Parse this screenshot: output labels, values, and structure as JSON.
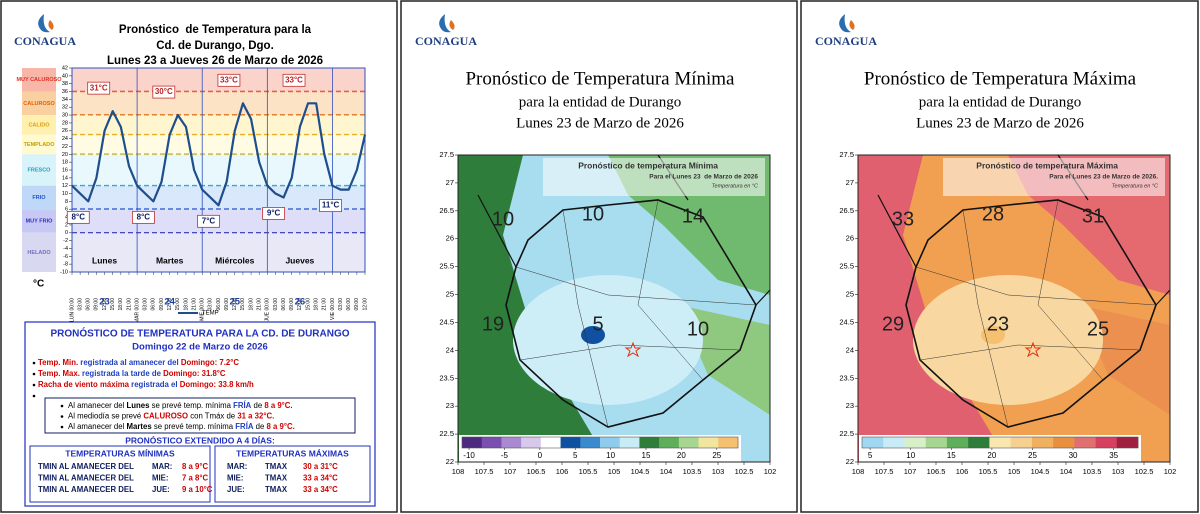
{
  "header": {
    "logo": "CONAGUA",
    "title": [
      "Pronóstico  de Temperatura para la",
      "Cd. de Durango, Dgo.",
      "Lunes 23 a Jueves 26 de Marzo de 2026"
    ],
    "unit": "°C"
  },
  "chart_data": {
    "type": "line",
    "categories": [
      "LUN 00:00",
      "03:00",
      "06:00",
      "09:00",
      "12:00",
      "15:00",
      "18:00",
      "21:00",
      "MAR 00:00",
      "03:00",
      "06:00",
      "09:00",
      "12:00",
      "15:00",
      "18:00",
      "21:00",
      "MIE 00:00",
      "03:00",
      "06:00",
      "09:00",
      "12:00",
      "15:00",
      "18:00",
      "21:00",
      "JUE 00:00",
      "03:00",
      "06:00",
      "09:00",
      "12:00",
      "15:00",
      "18:00",
      "21:00",
      "VIE 00:00",
      "03:00",
      "06:00",
      "09:00",
      "12:00"
    ],
    "series": [
      {
        "name": "TEMP",
        "color": "#1f4e8c",
        "values": [
          12,
          10,
          8,
          14,
          26,
          31,
          27,
          17,
          12,
          10,
          8,
          13,
          25,
          30,
          27,
          16,
          11,
          9,
          7,
          13,
          26,
          33,
          29,
          18,
          12,
          10,
          9,
          14,
          27,
          33,
          33,
          20,
          12,
          11,
          11,
          16,
          25
        ]
      }
    ],
    "ylim": [
      -10,
      42
    ],
    "yticks": [
      -10,
      -8,
      -6,
      -4,
      -2,
      0,
      2,
      4,
      6,
      8,
      10,
      12,
      14,
      16,
      18,
      20,
      22,
      24,
      26,
      28,
      30,
      32,
      34,
      36,
      38,
      40,
      42
    ],
    "bands": [
      {
        "label": "MUY CALUROSO",
        "from": 36,
        "to": 42,
        "color": "#f7b6a8",
        "text_color": "#e03020"
      },
      {
        "label": "CALUROSO",
        "from": 30,
        "to": 36,
        "color": "#fbd0a0",
        "text_color": "#e06000"
      },
      {
        "label": "CALIDO",
        "from": 25,
        "to": 30,
        "color": "#fff0b0",
        "text_color": "#e0a000"
      },
      {
        "label": "TEMPLADO",
        "from": 20,
        "to": 25,
        "color": "#fffad0",
        "text_color": "#c0a000"
      },
      {
        "label": "FRESCO",
        "from": 12,
        "to": 20,
        "color": "#d8f4fa",
        "text_color": "#20a0c0"
      },
      {
        "label": "FRIO",
        "from": 6,
        "to": 12,
        "color": "#c0d8f8",
        "text_color": "#2050d0"
      },
      {
        "label": "MUY FRIO",
        "from": 0,
        "to": 6,
        "color": "#c8c8f4",
        "text_color": "#3030c0"
      },
      {
        "label": "HELADO",
        "from": -10,
        "to": 0,
        "color": "#d8d8f0",
        "text_color": "#7070c0"
      }
    ],
    "annotations": [
      {
        "index": 5,
        "text": "31°C"
      },
      {
        "index": 13,
        "text": "30°C"
      },
      {
        "index": 21,
        "text": "33°C"
      },
      {
        "index": 29,
        "text": "33°C"
      },
      {
        "index": 2,
        "text": "8°C"
      },
      {
        "index": 10,
        "text": "8°C"
      },
      {
        "index": 18,
        "text": "7°C"
      },
      {
        "index": 26,
        "text": "9°C"
      },
      {
        "index": 33,
        "text": "11°C"
      }
    ],
    "days": [
      {
        "name": "Lunes",
        "number": "23"
      },
      {
        "name": "Martes",
        "number": "24"
      },
      {
        "name": "Miércoles",
        "number": "25"
      },
      {
        "name": "Jueves",
        "number": "26"
      }
    ]
  },
  "summary": {
    "title": "PRONÓSTICO DE TEMPERATURA PARA LA CD. DE DURANGO",
    "date": "Domingo 22 de Marzo de 2026",
    "observed": [
      [
        [
          "Temp. Min.",
          "#d00000"
        ],
        [
          " registrada al amanecer del ",
          "#1f3fbf"
        ],
        [
          "Domingo: 7.2°C",
          "#d00000"
        ]
      ],
      [
        [
          "Temp. Max.",
          "#d00000"
        ],
        [
          " registrada la tarde de ",
          "#1f3fbf"
        ],
        [
          "Domingo: 31.8°C",
          "#d00000"
        ]
      ],
      [
        [
          "Racha de viento máxima",
          "#d00000"
        ],
        [
          " registrada el ",
          "#1f3fbf"
        ],
        [
          "Domingo: 33.8 km/h",
          "#d00000"
        ]
      ]
    ],
    "forecast": [
      [
        [
          "Al amanecer del ",
          "#000000"
        ],
        [
          "Lunes",
          "#000000"
        ],
        [
          " se prevé temp. mínima ",
          "#000000"
        ],
        [
          "FRÍA",
          "#1f3fbf"
        ],
        [
          " de ",
          "#000000"
        ],
        [
          "8 a 9°C.",
          "#d00000"
        ]
      ],
      [
        [
          "Al mediodía se prevé ",
          "#000000"
        ],
        [
          "CALUROSO",
          "#d00000"
        ],
        [
          " con Tmáx de ",
          "#000000"
        ],
        [
          "31 a 32°C.",
          "#d00000"
        ]
      ],
      [
        [
          "Al amanecer del ",
          "#000000"
        ],
        [
          "Martes",
          "#000000"
        ],
        [
          " se prevé temp. mínima ",
          "#000000"
        ],
        [
          "FRÍA",
          "#1f3fbf"
        ],
        [
          " de ",
          "#000000"
        ],
        [
          "8 a 9°C.",
          "#d00000"
        ]
      ]
    ],
    "extended_title": "PRONÓSTICO EXTENDIDO A 4 DÍAS:",
    "min_table": {
      "title": "TEMPERATURAS MÍNIMAS",
      "rows": [
        [
          "TMIN AL AMANECER DEL",
          "MAR:",
          "8 a 9°C"
        ],
        [
          "TMIN AL AMANECER DEL",
          "MIE:",
          "7 a 8°C"
        ],
        [
          "TMIN AL AMANECER DEL",
          "JUE:",
          "9 a 10°C"
        ]
      ]
    },
    "max_table": {
      "title": "TEMPERATURAS MÁXIMAS",
      "rows": [
        [
          "MAR:",
          "TMAX",
          "30 a 31°C"
        ],
        [
          "MIE:",
          "TMAX",
          "33 a 34°C"
        ],
        [
          "JUE:",
          "TMAX",
          "33 a 34°C"
        ]
      ]
    }
  },
  "maps": [
    {
      "logo": "CONAGUA",
      "title": "Pronóstico de Temperatura Mínima",
      "subtitle": "para la entidad de Durango",
      "date": "Lunes 23 de Marzo de 2026",
      "inset_title": "Pronóstico de temperatura Mínima",
      "inset_date": "Para el Lunes 23  de Marzo de 2026",
      "inset_units": "Temperatura en °C",
      "xlim": [
        108,
        102
      ],
      "ylim": [
        22,
        27.5
      ],
      "xticks": [
        108,
        107.5,
        107,
        106.5,
        106,
        105.5,
        105,
        104.5,
        104,
        103.5,
        103,
        102.5,
        102
      ],
      "yticks": [
        22,
        22.5,
        23,
        23.5,
        24,
        24.5,
        25,
        25.5,
        26,
        26.5,
        27,
        27.5
      ],
      "colorbar": {
        "lim": [
          -11,
          28
        ],
        "ticks": [
          -10,
          -5,
          0,
          5,
          10,
          15,
          20,
          25
        ],
        "colors": [
          "#4b2a80",
          "#7a4fb0",
          "#a98ad0",
          "#d8c8ec",
          "#ffffff",
          "#1050a0",
          "#3a8ad0",
          "#8fcbed",
          "#c8ecf6",
          "#2e7d3a",
          "#5fae5a",
          "#a6d68f",
          "#f0e6a0",
          "#f5c070"
        ]
      },
      "labels": [
        "10",
        "10",
        "14",
        "19",
        "5",
        "10"
      ]
    },
    {
      "logo": "CONAGUA",
      "title": "Pronóstico de Temperatura Máxima",
      "subtitle": "para la entidad de Durango",
      "date": "Lunes 23 de Marzo de 2026",
      "inset_title": "Pronóstico de temperatura Máxima",
      "inset_date": "Para el Lunes 23 de Marzo de 2026.",
      "inset_units": "Temperatura en °C",
      "xlim": [
        108,
        102
      ],
      "ylim": [
        22,
        27.5
      ],
      "xticks": [
        108,
        107.5,
        107,
        106.5,
        106,
        105.5,
        105,
        104.5,
        104,
        103.5,
        103,
        102.5,
        102
      ],
      "yticks": [
        22,
        22.5,
        23,
        23.5,
        24,
        24.5,
        25,
        25.5,
        26,
        26.5,
        27,
        27.5
      ],
      "colorbar": {
        "lim": [
          4,
          38
        ],
        "ticks": [
          5,
          10,
          15,
          20,
          25,
          30,
          35
        ],
        "colors": [
          "#9fd8f0",
          "#c8ecf6",
          "#d8f0c8",
          "#a6d68f",
          "#5fae5a",
          "#2e7d3a",
          "#f8e8b0",
          "#f5d090",
          "#f0b060",
          "#e89040",
          "#e07070",
          "#d84060",
          "#a02040"
        ]
      },
      "labels": [
        "33",
        "28",
        "31",
        "29",
        "23",
        "25"
      ]
    }
  ]
}
